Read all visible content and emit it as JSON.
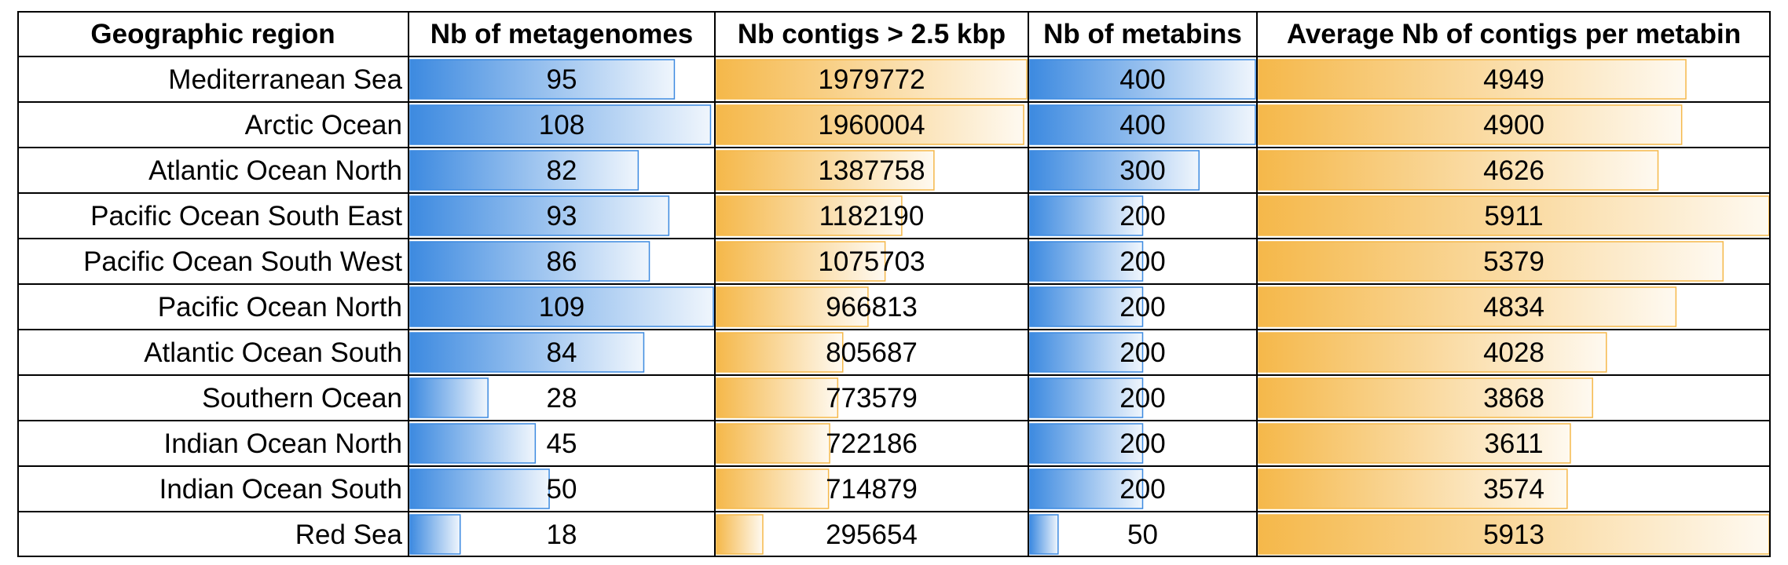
{
  "chart_data": {
    "type": "table",
    "columns": [
      {
        "key": "region",
        "label": "Geographic region",
        "bar": false
      },
      {
        "key": "metagenomes",
        "label": "Nb of metagenomes",
        "bar": true,
        "color": "#3d8ae0",
        "max": 109
      },
      {
        "key": "contigs",
        "label": "Nb contigs > 2.5 kbp",
        "bar": true,
        "color": "#f5b84a",
        "max": 1979772
      },
      {
        "key": "metabins",
        "label": "Nb of metabins",
        "bar": true,
        "color": "#3d8ae0",
        "max": 400
      },
      {
        "key": "avg_contigs",
        "label": "Average Nb of contigs per metabin",
        "bar": true,
        "color": "#f5b84a",
        "max": 5913
      }
    ],
    "rows": [
      {
        "region": "Mediterranean Sea",
        "metagenomes": 95,
        "contigs": 1979772,
        "metabins": 400,
        "avg_contigs": 4949
      },
      {
        "region": "Arctic Ocean",
        "metagenomes": 108,
        "contigs": 1960004,
        "metabins": 400,
        "avg_contigs": 4900
      },
      {
        "region": "Atlantic Ocean North",
        "metagenomes": 82,
        "contigs": 1387758,
        "metabins": 300,
        "avg_contigs": 4626
      },
      {
        "region": "Pacific Ocean South East",
        "metagenomes": 93,
        "contigs": 1182190,
        "metabins": 200,
        "avg_contigs": 5911
      },
      {
        "region": "Pacific Ocean South West",
        "metagenomes": 86,
        "contigs": 1075703,
        "metabins": 200,
        "avg_contigs": 5379
      },
      {
        "region": "Pacific Ocean North",
        "metagenomes": 109,
        "contigs": 966813,
        "metabins": 200,
        "avg_contigs": 4834
      },
      {
        "region": "Atlantic Ocean South",
        "metagenomes": 84,
        "contigs": 805687,
        "metabins": 200,
        "avg_contigs": 4028
      },
      {
        "region": "Southern Ocean",
        "metagenomes": 28,
        "contigs": 773579,
        "metabins": 200,
        "avg_contigs": 3868
      },
      {
        "region": "Indian Ocean North",
        "metagenomes": 45,
        "contigs": 722186,
        "metabins": 200,
        "avg_contigs": 3611
      },
      {
        "region": "Indian Ocean South",
        "metagenomes": 50,
        "contigs": 714879,
        "metabins": 200,
        "avg_contigs": 3574
      },
      {
        "region": "Red Sea",
        "metagenomes": 18,
        "contigs": 295654,
        "metabins": 50,
        "avg_contigs": 5913
      }
    ]
  }
}
